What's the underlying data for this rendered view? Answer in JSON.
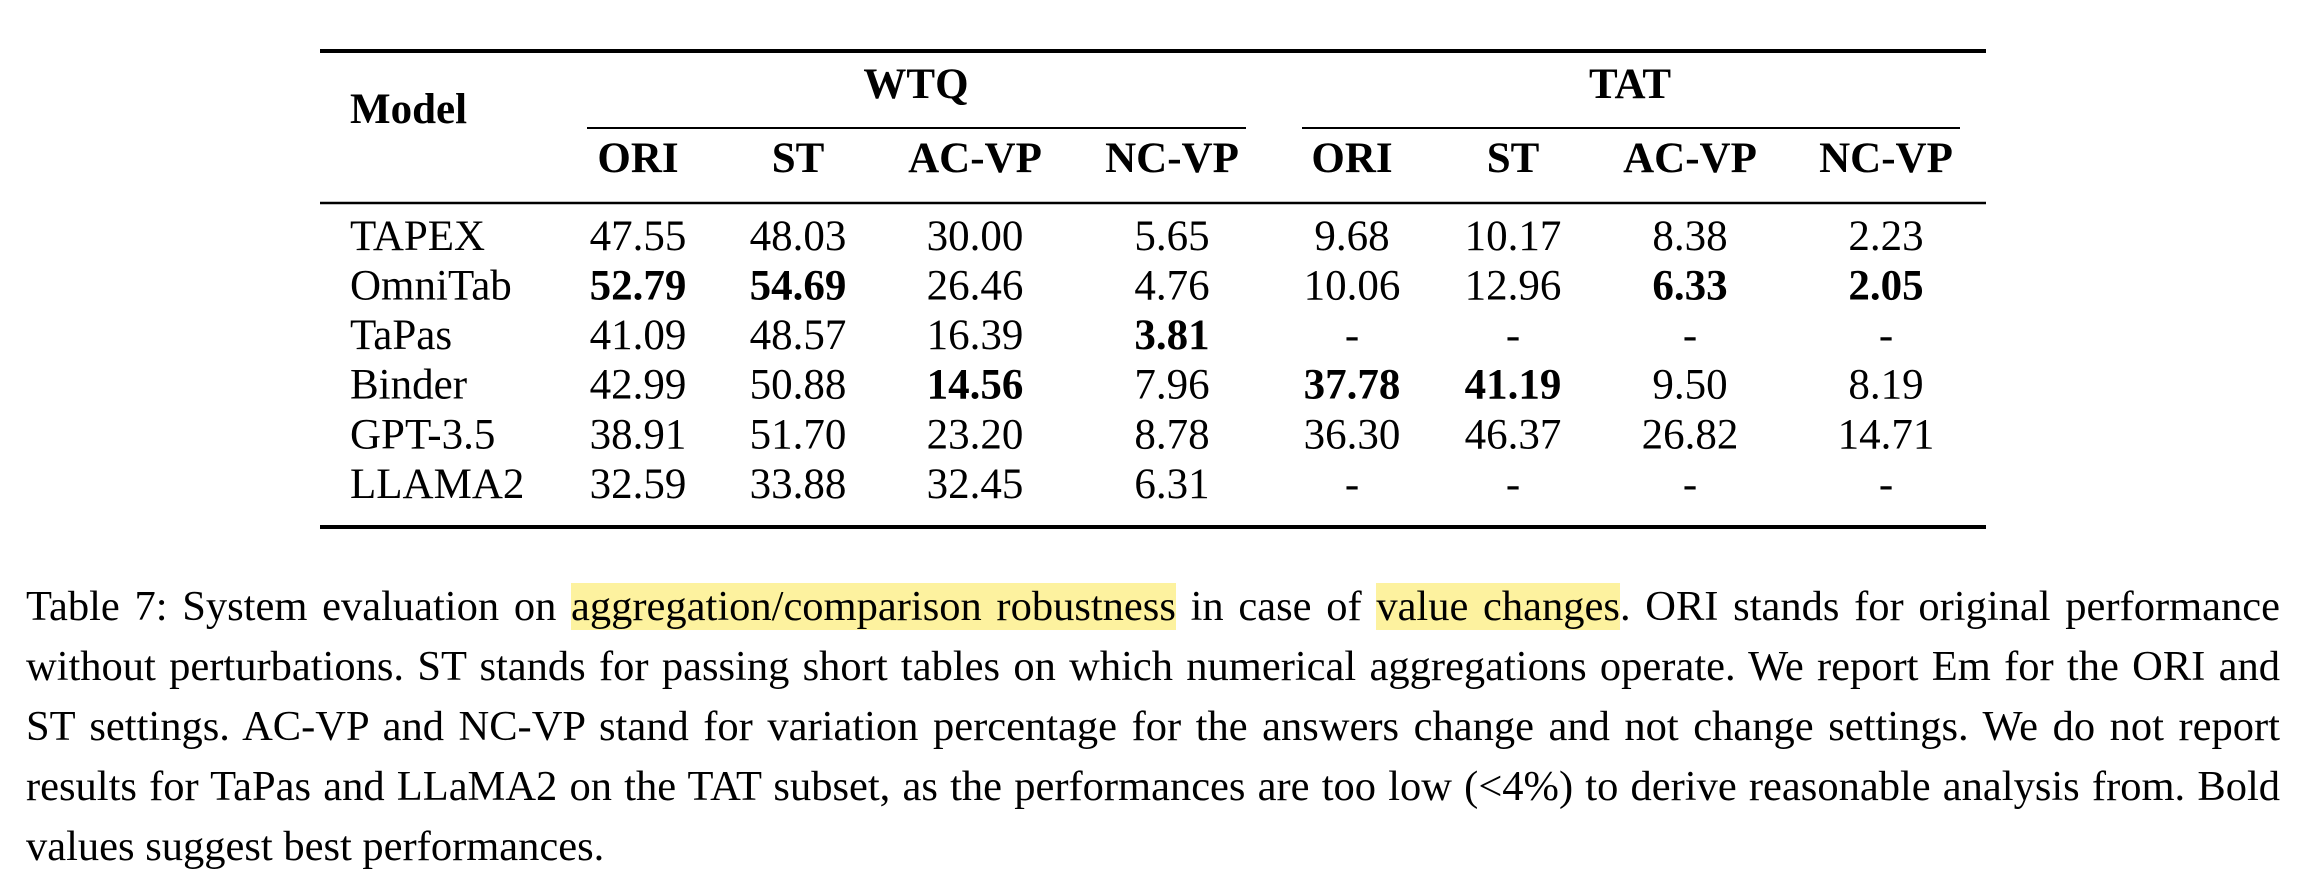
{
  "table": {
    "model_header": "Model",
    "groups": [
      "WTQ",
      "TAT"
    ],
    "columns": [
      "ORI",
      "ST",
      "AC-VP",
      "NC-VP",
      "ORI",
      "ST",
      "AC-VP",
      "NC-VP"
    ],
    "rows": [
      {
        "model": "TAPEX",
        "values": [
          "47.55",
          "48.03",
          "30.00",
          "5.65",
          "9.68",
          "10.17",
          "8.38",
          "2.23"
        ],
        "bold": [
          false,
          false,
          false,
          false,
          false,
          false,
          false,
          false
        ]
      },
      {
        "model": "OmniTab",
        "values": [
          "52.79",
          "54.69",
          "26.46",
          "4.76",
          "10.06",
          "12.96",
          "6.33",
          "2.05"
        ],
        "bold": [
          true,
          true,
          false,
          false,
          false,
          false,
          true,
          true
        ]
      },
      {
        "model": "TaPas",
        "values": [
          "41.09",
          "48.57",
          "16.39",
          "3.81",
          "-",
          "-",
          "-",
          "-"
        ],
        "bold": [
          false,
          false,
          false,
          true,
          false,
          false,
          false,
          false
        ]
      },
      {
        "model": "Binder",
        "values": [
          "42.99",
          "50.88",
          "14.56",
          "7.96",
          "37.78",
          "41.19",
          "9.50",
          "8.19"
        ],
        "bold": [
          false,
          false,
          true,
          false,
          true,
          true,
          false,
          false
        ]
      },
      {
        "model": "GPT-3.5",
        "values": [
          "38.91",
          "51.70",
          "23.20",
          "8.78",
          "36.30",
          "46.37",
          "26.82",
          "14.71"
        ],
        "bold": [
          false,
          false,
          false,
          false,
          false,
          false,
          false,
          false
        ]
      },
      {
        "model": "LLAMA2",
        "values": [
          "32.59",
          "33.88",
          "32.45",
          "6.31",
          "-",
          "-",
          "-",
          "-"
        ],
        "bold": [
          false,
          false,
          false,
          false,
          false,
          false,
          false,
          false
        ]
      }
    ]
  },
  "caption": [
    {
      "text": "Table 7: System evaluation on ",
      "highlight": false
    },
    {
      "text": "aggregation/comparison robustness",
      "highlight": true
    },
    {
      "text": " in case of ",
      "highlight": false
    },
    {
      "text": "value changes",
      "highlight": true
    },
    {
      "text": ". ORI stands for original performance without perturbations. ST stands for passing short tables on which numerical aggregations operate. We report Em for the ORI and ST settings. AC-VP and NC-VP stand for variation percentage for the answers change and not change settings. We do not report results for TaPas and LLaMA2 on the TAT subset, as the performances are too low (<4%) to derive reasonable analysis from. Bold values suggest best performances.",
      "highlight": false
    }
  ]
}
